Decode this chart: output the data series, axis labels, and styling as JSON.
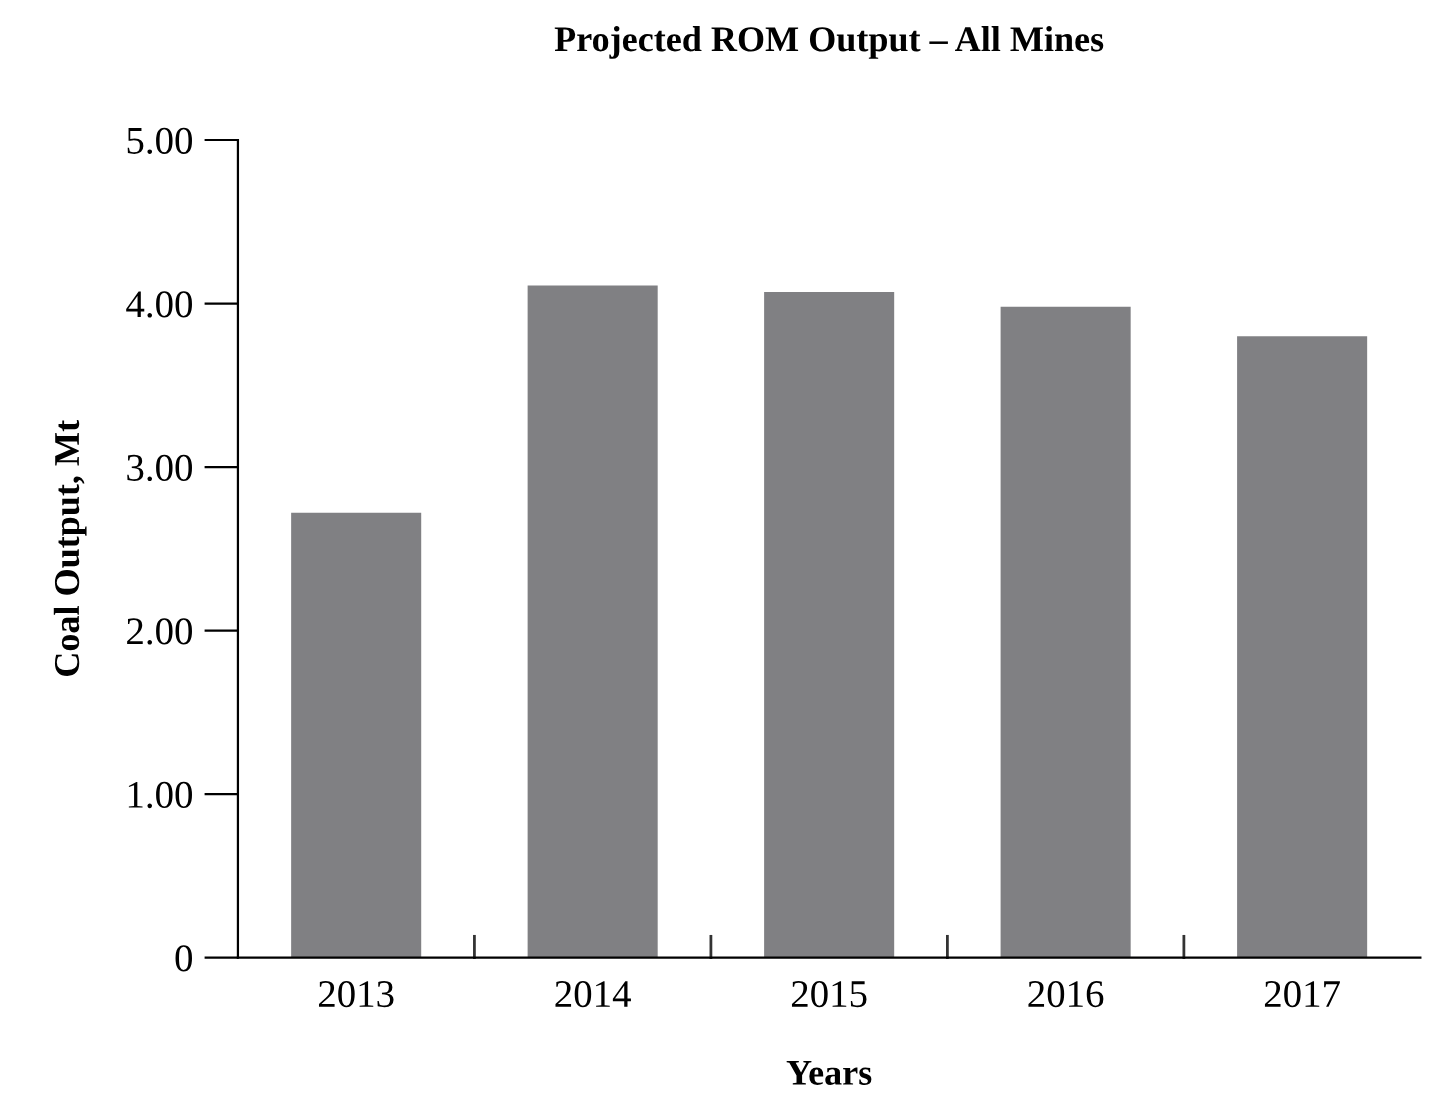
{
  "chart_data": {
    "type": "bar",
    "title": "Projected ROM Output – All Mines",
    "xlabel": "Years",
    "ylabel": "Coal Output, Mt",
    "categories": [
      "2013",
      "2014",
      "2015",
      "2016",
      "2017"
    ],
    "values": [
      2.72,
      4.11,
      4.07,
      3.98,
      3.8
    ],
    "color": "#808083",
    "ylim": [
      0,
      5
    ],
    "yticks": [
      {
        "value": 0,
        "label": "0"
      },
      {
        "value": 1,
        "label": "1.00"
      },
      {
        "value": 2,
        "label": "2.00"
      },
      {
        "value": 3,
        "label": "3.00"
      },
      {
        "value": 4,
        "label": "4.00"
      },
      {
        "value": 5,
        "label": "5.00"
      }
    ],
    "grid": false,
    "legend": false
  }
}
